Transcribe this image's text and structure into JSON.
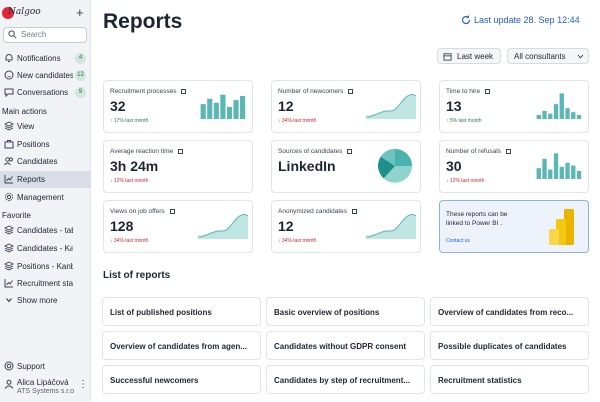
{
  "app": {
    "logo_text": "Nalgoo",
    "search_placeholder": "Search",
    "colors": {
      "accent": "#1f5fd1",
      "bars": "#5bb7b3",
      "brand": "#e0263a"
    }
  },
  "sidebar": {
    "top_items": [
      {
        "label": "Notifications",
        "badge": "4",
        "icon": "bell-icon"
      },
      {
        "label": "New candidates",
        "badge": "12",
        "icon": "new-candidates-icon"
      },
      {
        "label": "Conversations",
        "badge": "9",
        "icon": "chat-icon"
      }
    ],
    "main_actions_label": "Main actions",
    "main_actions": [
      {
        "label": "View",
        "icon": "layers-icon"
      },
      {
        "label": "Positions",
        "icon": "briefcase-icon"
      },
      {
        "label": "Candidates",
        "icon": "people-icon"
      },
      {
        "label": "Reports",
        "icon": "chart-icon",
        "active": true
      },
      {
        "label": "Management",
        "icon": "gear-icon"
      }
    ],
    "favorite_label": "Favorite",
    "favorites": [
      {
        "label": "Candidates - table",
        "icon": "layers-icon"
      },
      {
        "label": "Candidates - Kanban",
        "icon": "layers-icon"
      },
      {
        "label": "Positions - Kanban",
        "icon": "layers-icon"
      },
      {
        "label": "Recruitment statistics",
        "icon": "chart-icon"
      }
    ],
    "show_more": "Show more",
    "support": "Support",
    "user": {
      "name": "Alica Lipáčová",
      "org": "ATS Systems s.r.o"
    }
  },
  "header": {
    "title": "Reports",
    "last_update": "Last update 28. Sep 12:44",
    "period": "Last week",
    "consultants": "All consultants"
  },
  "cards": [
    {
      "label": "Recruitment processes",
      "value": "32",
      "trend": "17% last month",
      "dir": "up",
      "viz": "bars"
    },
    {
      "label": "Number of newcomers",
      "value": "12",
      "trend": "34% last month",
      "dir": "down",
      "viz": "area"
    },
    {
      "label": "Time to hire",
      "value": "13",
      "trend": "5% last month",
      "dir": "up",
      "viz": "bars"
    },
    {
      "label": "Average reaction time",
      "value": "3h 24m",
      "trend": "12% last month",
      "dir": "down",
      "viz": "none"
    },
    {
      "label": "Sources of candidates",
      "value": "LinkedIn",
      "trend": "",
      "dir": "none",
      "viz": "pie"
    },
    {
      "label": "Number of refusals",
      "value": "30",
      "trend": "12% last month",
      "dir": "down",
      "viz": "bars"
    },
    {
      "label": "Views on job offers",
      "value": "128",
      "trend": "34% last month",
      "dir": "down",
      "viz": "area"
    },
    {
      "label": "Anonymized candidates",
      "value": "12",
      "trend": "34% last month",
      "dir": "down",
      "viz": "area"
    }
  ],
  "promo": {
    "text": "These reports can be linked to Power BI .",
    "contact": "Contact us"
  },
  "reports_heading": "List of reports",
  "reports": [
    "List of published positions",
    "Basic overview of positions",
    "Overview of candidates from reco...",
    "Overview of candidates from agen...",
    "Candidates without GDPR consent",
    "Possible duplicates of candidates",
    "Successful newcomers",
    "Candidates by step of recruitment...",
    "Recruitment statistics"
  ]
}
